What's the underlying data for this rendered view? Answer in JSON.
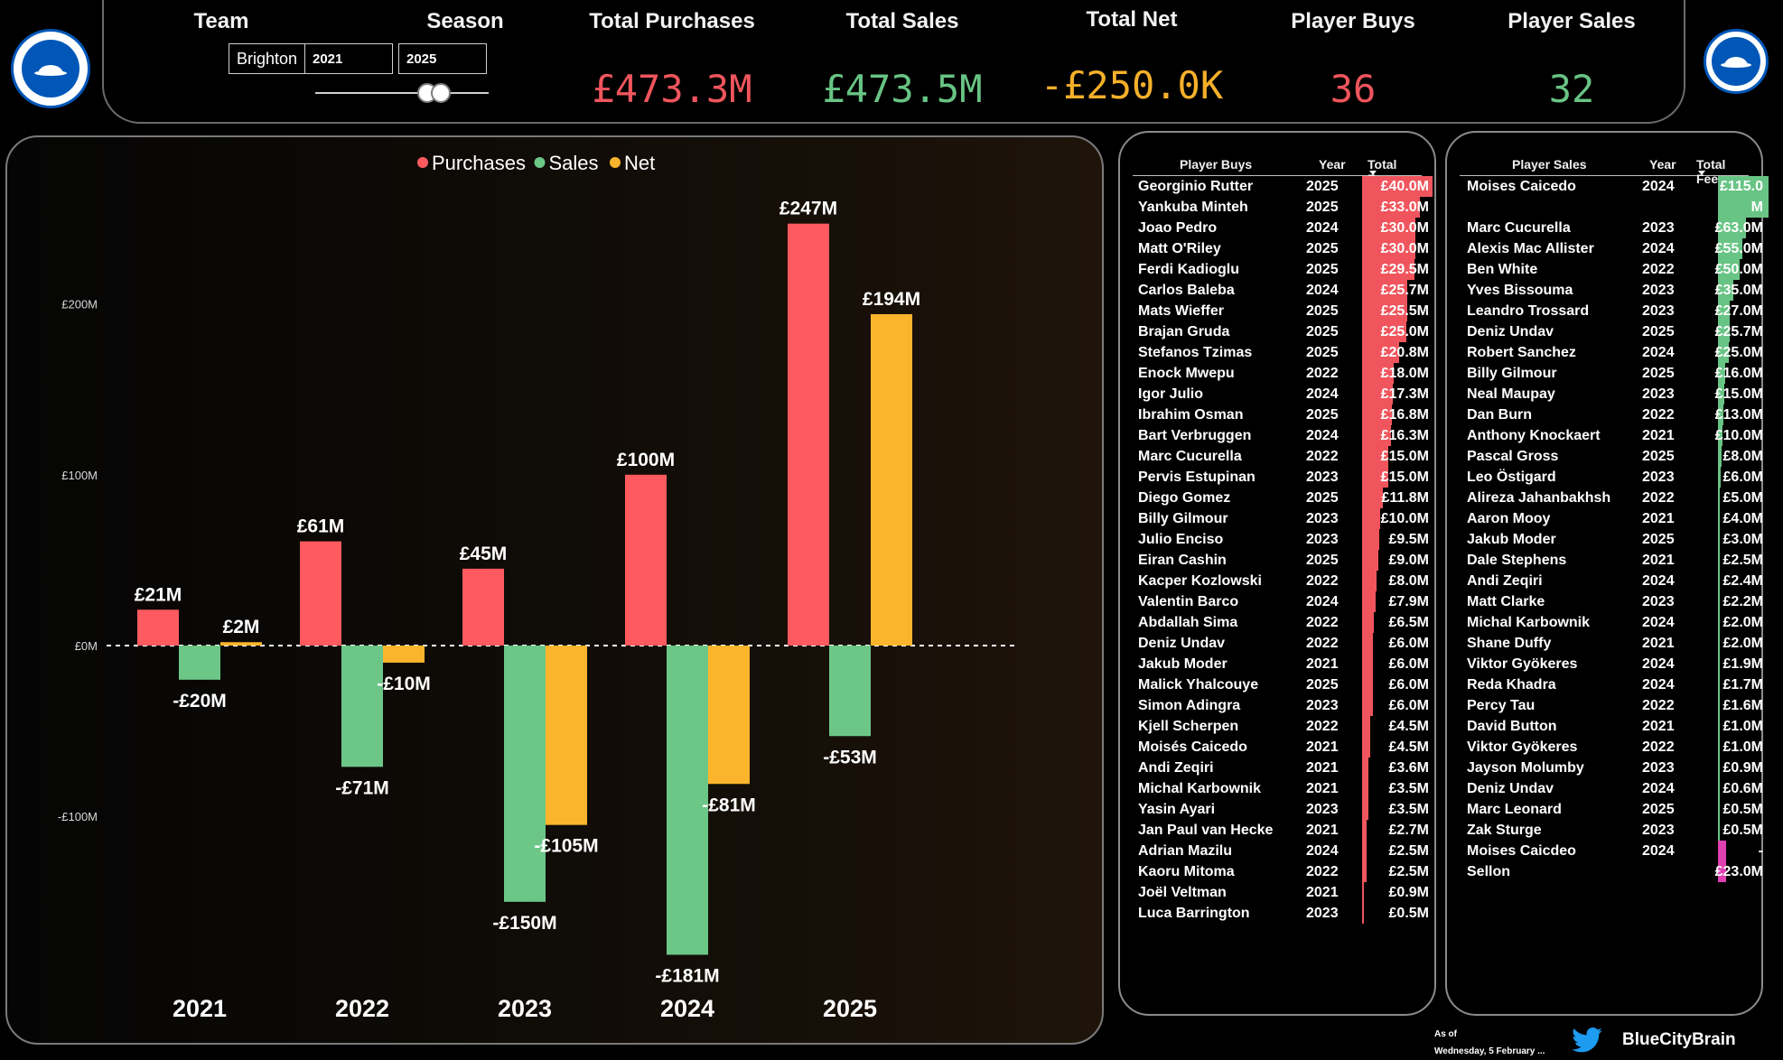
{
  "header": {
    "team_label": "Team",
    "team_value": "Brighton",
    "season_label": "Season",
    "season_start": "2021",
    "season_end": "2025",
    "kpis": [
      {
        "label": "Total Purchases",
        "value": "£473.3M",
        "color": "#f0555d"
      },
      {
        "label": "Total Sales",
        "value": "£473.5M",
        "color": "#68c484"
      },
      {
        "label": "Total Net",
        "value": "-£250.0K",
        "color": "#f5b02a"
      },
      {
        "label": "Player Buys",
        "value": "36",
        "color": "#f0555d"
      },
      {
        "label": "Player Sales",
        "value": "32",
        "color": "#68c484"
      }
    ],
    "logo_left": "brighton-crest-icon",
    "logo_right": "brighton-crest-icon"
  },
  "chart_data": {
    "type": "bar",
    "categories": [
      "2021",
      "2022",
      "2023",
      "2024",
      "2025"
    ],
    "series": [
      {
        "name": "Purchases",
        "color": "#ff5a5f",
        "values": [
          21,
          61,
          45,
          100,
          247
        ],
        "labels": [
          "£21M",
          "£61M",
          "£45M",
          "£100M",
          "£247M"
        ]
      },
      {
        "name": "Sales",
        "color": "#6cc787",
        "values": [
          -20,
          -71,
          -150,
          -181,
          -53
        ],
        "labels": [
          "-£20M",
          "-£71M",
          "-£150M",
          "-£181M",
          "-£53M"
        ]
      },
      {
        "name": "Net",
        "color": "#fbb52d",
        "values": [
          2,
          -10,
          -105,
          -81,
          194
        ],
        "labels": [
          "£2M",
          "-£10M",
          "-£105M",
          "-£81M",
          "£194M"
        ]
      }
    ],
    "y_ticks": [
      {
        "value": 200,
        "label": "£200M"
      },
      {
        "value": 100,
        "label": "£100M"
      },
      {
        "value": 0,
        "label": "£0M"
      },
      {
        "value": -100,
        "label": "-£100M"
      }
    ],
    "ylim": [
      -185,
      250
    ],
    "legend_position": "top-center",
    "grid": false
  },
  "buys_table": {
    "columns": [
      "Player Buys",
      "Year",
      "Total Fee"
    ],
    "max_fee": 40.0,
    "bar_color": "#f0555d",
    "rows": [
      {
        "name": "Georginio Rutter",
        "year": "2025",
        "fee": "£40.0M",
        "v": 40.0
      },
      {
        "name": "Yankuba Minteh",
        "year": "2025",
        "fee": "£33.0M",
        "v": 33.0
      },
      {
        "name": "Joao Pedro",
        "year": "2024",
        "fee": "£30.0M",
        "v": 30.0
      },
      {
        "name": "Matt O'Riley",
        "year": "2025",
        "fee": "£30.0M",
        "v": 30.0
      },
      {
        "name": "Ferdi Kadioglu",
        "year": "2025",
        "fee": "£29.5M",
        "v": 29.5
      },
      {
        "name": "Carlos Baleba",
        "year": "2024",
        "fee": "£25.7M",
        "v": 25.7
      },
      {
        "name": "Mats Wieffer",
        "year": "2025",
        "fee": "£25.5M",
        "v": 25.5
      },
      {
        "name": "Brajan Gruda",
        "year": "2025",
        "fee": "£25.0M",
        "v": 25.0
      },
      {
        "name": "Stefanos Tzimas",
        "year": "2025",
        "fee": "£20.8M",
        "v": 20.8
      },
      {
        "name": "Enock Mwepu",
        "year": "2022",
        "fee": "£18.0M",
        "v": 18.0
      },
      {
        "name": "Igor Julio",
        "year": "2024",
        "fee": "£17.3M",
        "v": 17.3
      },
      {
        "name": "Ibrahim Osman",
        "year": "2025",
        "fee": "£16.8M",
        "v": 16.8
      },
      {
        "name": "Bart Verbruggen",
        "year": "2024",
        "fee": "£16.3M",
        "v": 16.3
      },
      {
        "name": "Marc Cucurella",
        "year": "2022",
        "fee": "£15.0M",
        "v": 15.0
      },
      {
        "name": "Pervis Estupinan",
        "year": "2023",
        "fee": "£15.0M",
        "v": 15.0
      },
      {
        "name": "Diego Gomez",
        "year": "2025",
        "fee": "£11.8M",
        "v": 11.8
      },
      {
        "name": "Billy Gilmour",
        "year": "2023",
        "fee": "£10.0M",
        "v": 10.0
      },
      {
        "name": "Julio Enciso",
        "year": "2023",
        "fee": "£9.5M",
        "v": 9.5
      },
      {
        "name": "Eiran Cashin",
        "year": "2025",
        "fee": "£9.0M",
        "v": 9.0
      },
      {
        "name": "Kacper Kozlowski",
        "year": "2022",
        "fee": "£8.0M",
        "v": 8.0
      },
      {
        "name": "Valentin Barco",
        "year": "2024",
        "fee": "£7.9M",
        "v": 7.9
      },
      {
        "name": "Abdallah Sima",
        "year": "2022",
        "fee": "£6.5M",
        "v": 6.5
      },
      {
        "name": "Deniz Undav",
        "year": "2022",
        "fee": "£6.0M",
        "v": 6.0
      },
      {
        "name": "Jakub Moder",
        "year": "2021",
        "fee": "£6.0M",
        "v": 6.0
      },
      {
        "name": "Malick Yhalcouye",
        "year": "2025",
        "fee": "£6.0M",
        "v": 6.0
      },
      {
        "name": "Simon Adingra",
        "year": "2023",
        "fee": "£6.0M",
        "v": 6.0
      },
      {
        "name": "Kjell Scherpen",
        "year": "2022",
        "fee": "£4.5M",
        "v": 4.5
      },
      {
        "name": "Moisés Caicedo",
        "year": "2021",
        "fee": "£4.5M",
        "v": 4.5
      },
      {
        "name": "Andi Zeqiri",
        "year": "2021",
        "fee": "£3.6M",
        "v": 3.6
      },
      {
        "name": "Michal Karbownik",
        "year": "2021",
        "fee": "£3.5M",
        "v": 3.5
      },
      {
        "name": "Yasin Ayari",
        "year": "2023",
        "fee": "£3.5M",
        "v": 3.5
      },
      {
        "name": "Jan Paul van Hecke",
        "year": "2021",
        "fee": "£2.7M",
        "v": 2.7
      },
      {
        "name": "Adrian Mazilu",
        "year": "2024",
        "fee": "£2.5M",
        "v": 2.5
      },
      {
        "name": "Kaoru Mitoma",
        "year": "2022",
        "fee": "£2.5M",
        "v": 2.5
      },
      {
        "name": "Joël Veltman",
        "year": "2021",
        "fee": "£0.9M",
        "v": 0.9
      },
      {
        "name": "Luca Barrington",
        "year": "2023",
        "fee": "£0.5M",
        "v": 0.5
      }
    ]
  },
  "sales_table": {
    "columns": [
      "Player Sales",
      "Year",
      "Total Fee"
    ],
    "max_fee": 115.0,
    "bar_color": "#68c484",
    "rows": [
      {
        "name": "Moises Caicedo",
        "year": "2024",
        "fee": "£115.0",
        "v": 115.0
      },
      {
        "name": "",
        "year": "",
        "fee": "M",
        "v": 115.0
      },
      {
        "name": "Marc Cucurella",
        "year": "2023",
        "fee": "£63.0M",
        "v": 63.0
      },
      {
        "name": "Alexis Mac Allister",
        "year": "2024",
        "fee": "£55.0M",
        "v": 55.0
      },
      {
        "name": "Ben White",
        "year": "2022",
        "fee": "£50.0M",
        "v": 50.0
      },
      {
        "name": "Yves Bissouma",
        "year": "2023",
        "fee": "£35.0M",
        "v": 35.0
      },
      {
        "name": "Leandro Trossard",
        "year": "2023",
        "fee": "£27.0M",
        "v": 27.0
      },
      {
        "name": "Deniz Undav",
        "year": "2025",
        "fee": "£25.7M",
        "v": 25.7
      },
      {
        "name": "Robert Sanchez",
        "year": "2024",
        "fee": "£25.0M",
        "v": 25.0
      },
      {
        "name": "Billy Gilmour",
        "year": "2025",
        "fee": "£16.0M",
        "v": 16.0
      },
      {
        "name": "Neal Maupay",
        "year": "2023",
        "fee": "£15.0M",
        "v": 15.0
      },
      {
        "name": "Dan Burn",
        "year": "2022",
        "fee": "£13.0M",
        "v": 13.0
      },
      {
        "name": "Anthony Knockaert",
        "year": "2021",
        "fee": "£10.0M",
        "v": 10.0
      },
      {
        "name": "Pascal Gross",
        "year": "2025",
        "fee": "£8.0M",
        "v": 8.0
      },
      {
        "name": "Leo Östigard",
        "year": "2023",
        "fee": "£6.0M",
        "v": 6.0
      },
      {
        "name": "Alireza Jahanbakhsh",
        "year": "2022",
        "fee": "£5.0M",
        "v": 5.0
      },
      {
        "name": "Aaron Mooy",
        "year": "2021",
        "fee": "£4.0M",
        "v": 4.0
      },
      {
        "name": "Jakub Moder",
        "year": "2025",
        "fee": "£3.0M",
        "v": 3.0
      },
      {
        "name": "Dale Stephens",
        "year": "2021",
        "fee": "£2.5M",
        "v": 2.5
      },
      {
        "name": "Andi Zeqiri",
        "year": "2024",
        "fee": "£2.4M",
        "v": 2.4
      },
      {
        "name": "Matt Clarke",
        "year": "2023",
        "fee": "£2.2M",
        "v": 2.2
      },
      {
        "name": "Michal Karbownik",
        "year": "2024",
        "fee": "£2.0M",
        "v": 2.0
      },
      {
        "name": "Shane Duffy",
        "year": "2021",
        "fee": "£2.0M",
        "v": 2.0
      },
      {
        "name": "Viktor Gyökeres",
        "year": "2024",
        "fee": "£1.9M",
        "v": 1.9
      },
      {
        "name": "Reda Khadra",
        "year": "2024",
        "fee": "£1.7M",
        "v": 1.7
      },
      {
        "name": "Percy Tau",
        "year": "2022",
        "fee": "£1.6M",
        "v": 1.6
      },
      {
        "name": "David Button",
        "year": "2021",
        "fee": "£1.0M",
        "v": 1.0
      },
      {
        "name": "Viktor Gyökeres",
        "year": "2022",
        "fee": "£1.0M",
        "v": 1.0
      },
      {
        "name": "Jayson Molumby",
        "year": "2023",
        "fee": "£0.9M",
        "v": 0.9
      },
      {
        "name": "Deniz Undav",
        "year": "2024",
        "fee": "£0.6M",
        "v": 0.6
      },
      {
        "name": "Marc Leonard",
        "year": "2025",
        "fee": "£0.5M",
        "v": 0.5
      },
      {
        "name": "Zak Sturge",
        "year": "2023",
        "fee": "£0.5M",
        "v": 0.5
      },
      {
        "name": "Moises Caicdeo",
        "year": "2024",
        "fee": "-",
        "v": 0,
        "neg_color": "#e040b0"
      },
      {
        "name": "Sellon",
        "year": "",
        "fee": "£23.0M",
        "v": 0,
        "neg_color": "#e040b0"
      }
    ]
  },
  "footer": {
    "as_of": "As of",
    "date": "Wednesday, 5 February ...",
    "twitter_icon": "twitter-bird-icon",
    "handle": "BlueCityBrain"
  }
}
